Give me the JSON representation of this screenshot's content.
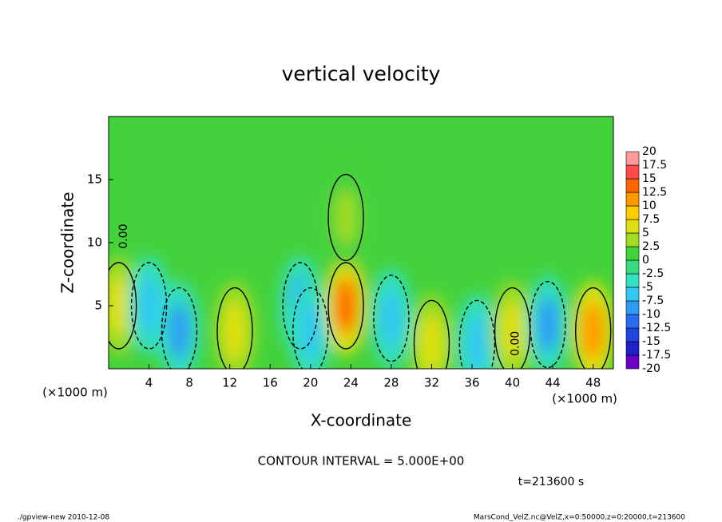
{
  "chart_data": {
    "type": "contour",
    "title": "vertical velocity",
    "x_label": "X-coordinate",
    "y_label": "Z-coordinate",
    "x_unit_label": "(×1000 m)",
    "y_unit_label": "(×1000 m)",
    "xlim": [
      0,
      50
    ],
    "ylim": [
      0,
      20
    ],
    "xticks": [
      4,
      8,
      12,
      16,
      20,
      24,
      28,
      32,
      36,
      40,
      44,
      48
    ],
    "yticks": [
      5,
      10,
      15
    ],
    "background_value": 0.5,
    "blobs": [
      {
        "x": 1,
        "z": 5,
        "value": 6
      },
      {
        "x": 4,
        "z": 5,
        "value": -7
      },
      {
        "x": 7,
        "z": 3,
        "value": -8
      },
      {
        "x": 12.5,
        "z": 3,
        "value": 7
      },
      {
        "x": 19,
        "z": 5,
        "value": -9
      },
      {
        "x": 20,
        "z": 3,
        "value": -5
      },
      {
        "x": 23.5,
        "z": 5,
        "value": 13
      },
      {
        "x": 23.5,
        "z": 12,
        "value": 3
      },
      {
        "x": 28,
        "z": 4,
        "value": -5
      },
      {
        "x": 32,
        "z": 2,
        "value": 6
      },
      {
        "x": 36.5,
        "z": 2,
        "value": -5
      },
      {
        "x": 40,
        "z": 3,
        "value": 7
      },
      {
        "x": 43.5,
        "z": 3.5,
        "value": -8
      },
      {
        "x": 48,
        "z": 3,
        "value": 12
      }
    ],
    "contour_labels": [
      {
        "text": "0.00",
        "x": 1.5,
        "z": 10.5
      },
      {
        "text": "0.00",
        "x": 40.3,
        "z": 2
      }
    ],
    "colorbar_levels": [
      -20,
      -17.5,
      -15,
      -12.5,
      -10,
      -7.5,
      -5,
      -2.5,
      0,
      2.5,
      5,
      7.5,
      10,
      12.5,
      15,
      17.5,
      20
    ],
    "colorbar_colors": [
      "#6a00c8",
      "#2020c8",
      "#2244e0",
      "#2a6cf0",
      "#2f9cf5",
      "#33c8f0",
      "#33e0c0",
      "#38dc80",
      "#44d23c",
      "#a0dc22",
      "#e0e010",
      "#ffcc00",
      "#ff9900",
      "#ff6600",
      "#ff4848",
      "#ff9a9a"
    ],
    "contour_interval_label": "CONTOUR INTERVAL = 5.000E+00",
    "time_label": "t=213600 s",
    "footer_left": "./gpview-new  2010-12-08",
    "footer_right": "MarsCond_VelZ.nc@VelZ,x=0:50000,z=0:20000,t=213600"
  }
}
